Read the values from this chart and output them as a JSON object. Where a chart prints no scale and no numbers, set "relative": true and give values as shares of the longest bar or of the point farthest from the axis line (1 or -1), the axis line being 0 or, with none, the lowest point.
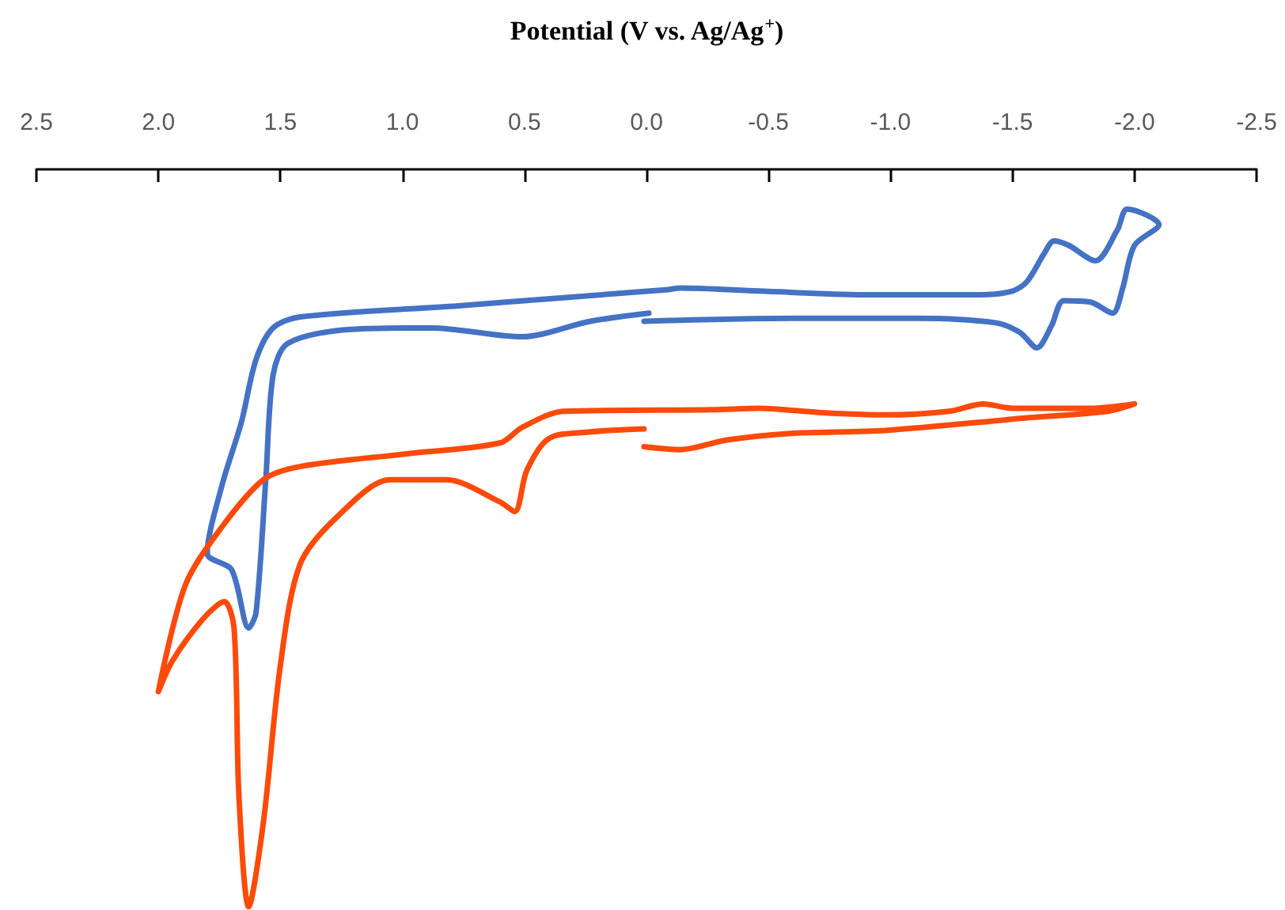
{
  "chart_data": {
    "type": "line",
    "xlabel": "Potential (V vs. Ag/Ag$^{+}$)",
    "relative": true,
    "xlim": [
      2.5,
      -2.5
    ],
    "xticks": [
      2.5,
      {
        "value": 2,
        "label": "2.0"
      },
      1.5,
      {
        "value": 1,
        "label": "1.0"
      },
      0.5,
      {
        "value": 0,
        "label": "0.0"
      },
      -0.5,
      {
        "value": -1,
        "label": "-1.0"
      },
      -1.5,
      {
        "value": -2,
        "label": "-2.0"
      },
      -2.5
    ],
    "grid": false,
    "marker": "none",
    "line_style": "solid",
    "series": [
      {
        "color": "#4472c4",
        "x": [
          0.01,
          -0.59,
          -1.11,
          -1.43,
          -1.53,
          -1.6,
          -1.66,
          -1.71,
          -1.82,
          -1.91,
          -1.95,
          -2.0,
          -2.1,
          -1.97,
          -1.93,
          -1.84,
          -1.73,
          -1.67,
          -1.63,
          -1.56,
          -1.5,
          -1.37,
          -0.91,
          -0.46,
          -0.14,
          -0.09,
          0.34,
          0.77,
          1.42,
          1.53,
          1.6,
          1.66,
          1.74,
          1.8,
          1.7,
          1.63,
          1.6,
          1.56,
          1.53,
          1.47,
          1.21,
          0.88,
          0.51,
          0.23,
          -0.01
        ],
        "values": [
          -0.206,
          -0.202,
          -0.202,
          -0.208,
          -0.221,
          -0.242,
          -0.212,
          -0.178,
          -0.18,
          -0.195,
          -0.163,
          -0.103,
          -0.075,
          -0.054,
          -0.082,
          -0.124,
          -0.103,
          -0.097,
          -0.114,
          -0.152,
          -0.165,
          -0.17,
          -0.17,
          -0.165,
          -0.161,
          -0.163,
          -0.174,
          -0.185,
          -0.2,
          -0.215,
          -0.258,
          -0.343,
          -0.429,
          -0.521,
          -0.543,
          -0.622,
          -0.601,
          -0.421,
          -0.279,
          -0.236,
          -0.217,
          -0.215,
          -0.227,
          -0.206,
          -0.195
        ]
      },
      {
        "color": "#fc4a0a",
        "x": [
          0.01,
          -0.14,
          -0.33,
          -0.59,
          -0.98,
          -1.56,
          -1.89,
          -2.0,
          -1.82,
          -1.5,
          -1.38,
          -1.24,
          -0.98,
          -0.72,
          -0.46,
          -0.27,
          0.34,
          0.51,
          0.6,
          0.99,
          1.42,
          1.57,
          1.74,
          1.89,
          2.0,
          1.94,
          1.81,
          1.73,
          1.69,
          1.67,
          1.63,
          1.57,
          1.5,
          1.42,
          1.27,
          1.05,
          0.82,
          0.6,
          0.54,
          0.49,
          0.4,
          0.23,
          0.01
        ],
        "values": [
          -0.376,
          -0.38,
          -0.367,
          -0.358,
          -0.354,
          -0.337,
          -0.328,
          -0.318,
          -0.324,
          -0.324,
          -0.318,
          -0.328,
          -0.333,
          -0.33,
          -0.324,
          -0.326,
          -0.328,
          -0.35,
          -0.371,
          -0.386,
          -0.403,
          -0.421,
          -0.485,
          -0.564,
          -0.708,
          -0.665,
          -0.607,
          -0.586,
          -0.622,
          -0.85,
          -1,
          -0.886,
          -0.672,
          -0.536,
          -0.472,
          -0.421,
          -0.421,
          -0.451,
          -0.464,
          -0.408,
          -0.365,
          -0.356,
          -0.352
        ]
      }
    ]
  }
}
